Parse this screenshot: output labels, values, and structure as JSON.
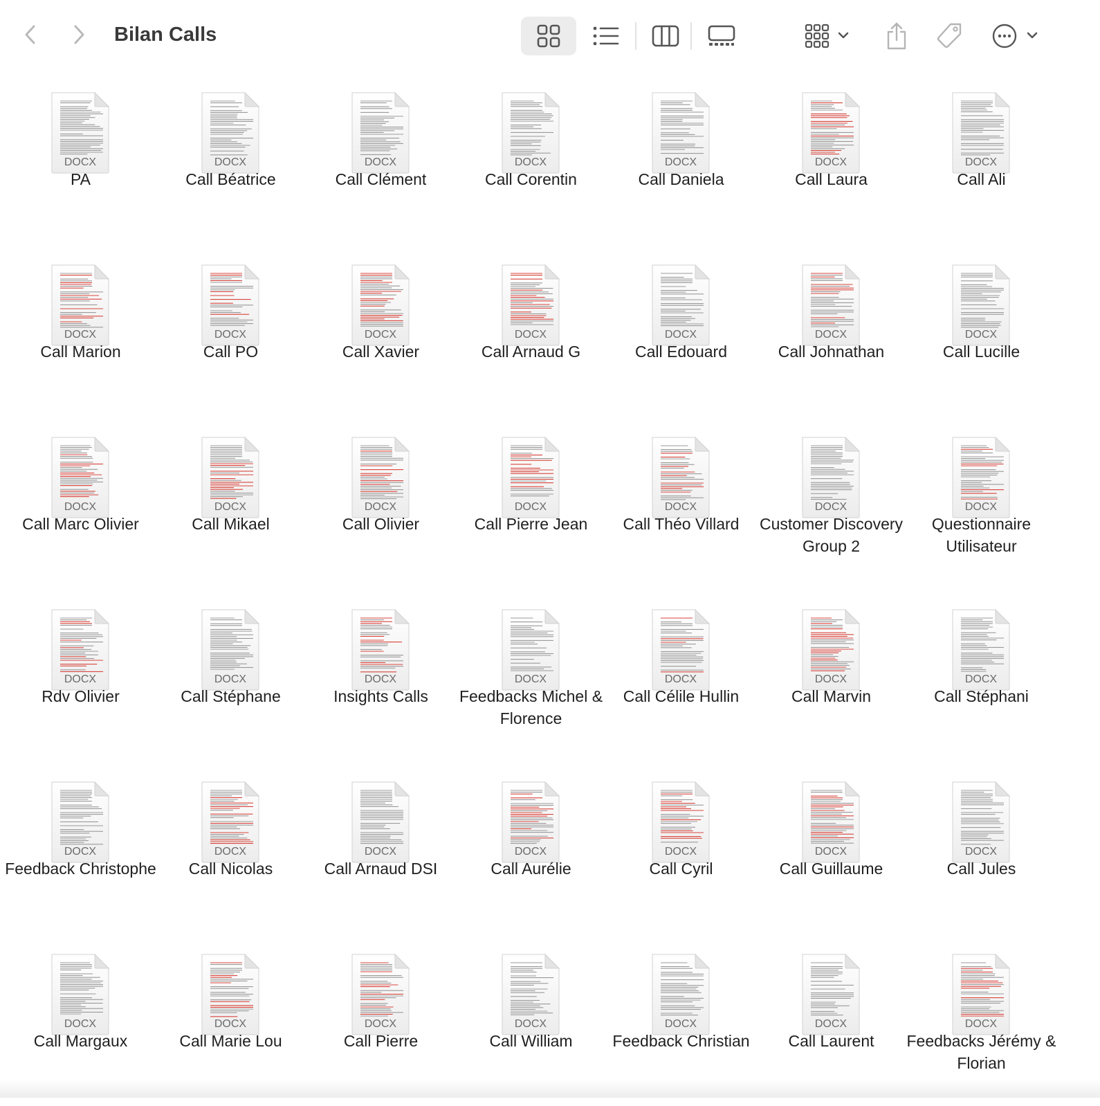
{
  "window": {
    "title": "Bilan Calls"
  },
  "toolbar": {
    "back_icon": "chevron-left-icon",
    "forward_icon": "chevron-right-icon",
    "view_modes": [
      "icon-view",
      "list-view",
      "column-view",
      "gallery-view"
    ],
    "active_view": "icon-view",
    "group_icon": "group-by-icon",
    "share_icon": "share-icon",
    "tag_icon": "tag-icon",
    "more_icon": "ellipsis-circle-icon"
  },
  "colors": {
    "accent_red": "#d8453c",
    "active_view_bg": "#ececec",
    "text": "#1f1f1f"
  },
  "file_badge": "DOCX",
  "files": [
    {
      "name": "PA",
      "red": false
    },
    {
      "name": "Call Béatrice",
      "red": false
    },
    {
      "name": "Call Clément",
      "red": false
    },
    {
      "name": "Call Corentin",
      "red": false
    },
    {
      "name": "Call Daniela",
      "red": false
    },
    {
      "name": "Call Laura",
      "red": true
    },
    {
      "name": "Call Ali",
      "red": false
    },
    {
      "name": "Call Marion",
      "red": true
    },
    {
      "name": "Call PO",
      "red": true
    },
    {
      "name": "Call Xavier",
      "red": true
    },
    {
      "name": "Call Arnaud G",
      "red": true
    },
    {
      "name": "Call Edouard",
      "red": false
    },
    {
      "name": "Call Johnathan",
      "red": true
    },
    {
      "name": "Call Lucille",
      "red": false
    },
    {
      "name": "Call Marc Olivier",
      "red": true
    },
    {
      "name": "Call Mikael",
      "red": true
    },
    {
      "name": "Call Olivier",
      "red": true
    },
    {
      "name": "Call Pierre Jean",
      "red": true
    },
    {
      "name": "Call Théo Villard",
      "red": true
    },
    {
      "name": "Customer Discovery Group 2",
      "red": false
    },
    {
      "name": "Questionnaire Utilisateur",
      "red": true
    },
    {
      "name": "Rdv Olivier",
      "red": true
    },
    {
      "name": "Call Stéphane",
      "red": false
    },
    {
      "name": "Insights Calls",
      "red": true
    },
    {
      "name": "Feedbacks Michel & Florence",
      "red": false
    },
    {
      "name": "Call Célile Hullin",
      "red": true
    },
    {
      "name": "Call Marvin",
      "red": true
    },
    {
      "name": "Call Stéphani",
      "red": false
    },
    {
      "name": "Feedback Christophe",
      "red": false
    },
    {
      "name": "Call Nicolas",
      "red": true
    },
    {
      "name": "Call Arnaud DSI",
      "red": false
    },
    {
      "name": "Call Aurélie",
      "red": true
    },
    {
      "name": "Call Cyril",
      "red": true
    },
    {
      "name": "Call Guillaume",
      "red": true
    },
    {
      "name": "Call Jules",
      "red": false
    },
    {
      "name": "Call Margaux",
      "red": false
    },
    {
      "name": "Call Marie Lou",
      "red": true
    },
    {
      "name": "Call Pierre",
      "red": true
    },
    {
      "name": "Call William",
      "red": false
    },
    {
      "name": "Feedback Christian",
      "red": false
    },
    {
      "name": "Call Laurent",
      "red": false
    },
    {
      "name": "Feedbacks Jérémy & Florian",
      "red": true
    }
  ]
}
